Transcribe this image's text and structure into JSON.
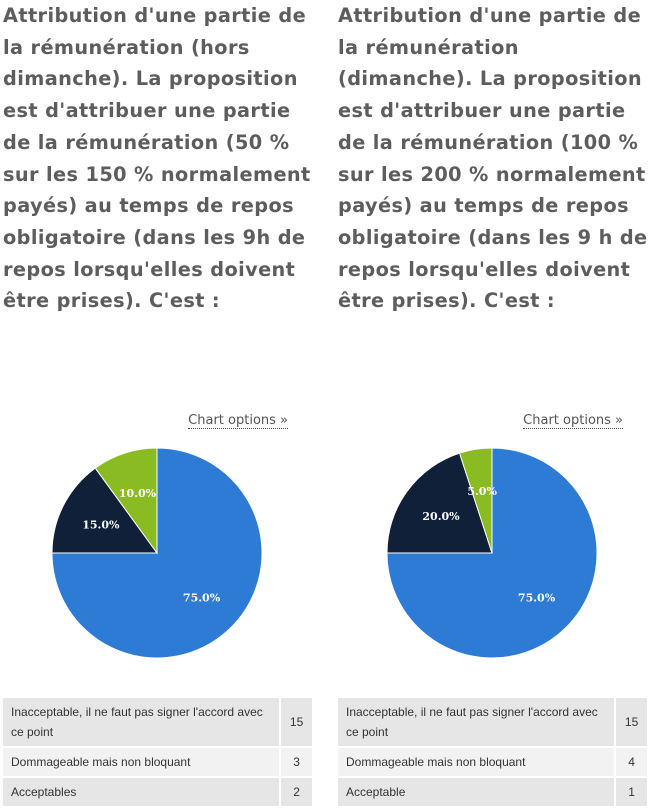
{
  "columns": [
    {
      "question": "Attribution d'une partie de la rémunération (hors dimanche). La proposition est d'attribuer une partie de la rémunération (50 % sur les 150 % normalement payés) au temps de repos obligatoire (dans les 9h de repos lorsqu'elles doivent être prises). C'est :",
      "chart_options_label": "Chart options »",
      "results": [
        {
          "label": "Inacceptable, il ne faut pas signer l'accord avec ce point",
          "count": "15"
        },
        {
          "label": "Dommageable mais non bloquant",
          "count": "3"
        },
        {
          "label": "Acceptables",
          "count": "2"
        }
      ]
    },
    {
      "question": "Attribution d'une partie de la rémunération (dimanche). La proposition est d'attribuer une partie de la rémunération (100 % sur les 200 % normalement payés) au temps de repos obligatoire (dans les 9 h de repos lorsqu'elles doivent être prises). C'est :",
      "chart_options_label": "Chart options »",
      "results": [
        {
          "label": "Inacceptable, il ne faut pas signer l'accord avec ce point",
          "count": "15"
        },
        {
          "label": "Dommageable mais non bloquant",
          "count": "4"
        },
        {
          "label": "Acceptable",
          "count": "1"
        }
      ]
    }
  ],
  "chart_data": [
    {
      "type": "pie",
      "categories": [
        "Inacceptable, il ne faut pas signer l'accord avec ce point",
        "Dommageable mais non bloquant",
        "Acceptables"
      ],
      "values": [
        75.0,
        15.0,
        10.0
      ],
      "labels": [
        "75.0%",
        "15.0%",
        "10.0%"
      ],
      "colors": [
        "#2e7bd6",
        "#0f2038",
        "#8bbb22"
      ]
    },
    {
      "type": "pie",
      "categories": [
        "Inacceptable, il ne faut pas signer l'accord avec ce point",
        "Dommageable mais non bloquant",
        "Acceptable"
      ],
      "values": [
        75.0,
        20.0,
        5.0
      ],
      "labels": [
        "75.0%",
        "20.0%",
        "5.0%"
      ],
      "colors": [
        "#2e7bd6",
        "#0f2038",
        "#8bbb22"
      ]
    }
  ]
}
